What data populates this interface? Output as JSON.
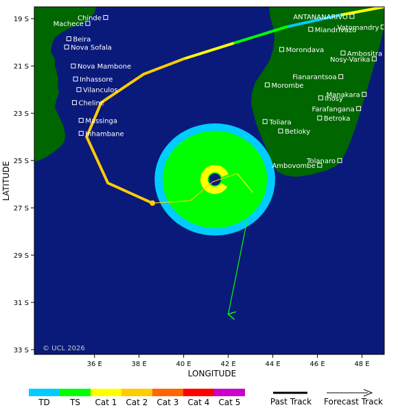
{
  "map": {
    "xlabel": "LONGITUDE",
    "ylabel": "LATITUDE",
    "copyright": "© UCL 2026",
    "lon_range": [
      33.3,
      49.0
    ],
    "lat_range": [
      -18.5,
      -33.2
    ],
    "x_ticks": [
      {
        "value": 36,
        "label": "36 E"
      },
      {
        "value": 38,
        "label": "38 E"
      },
      {
        "value": 40,
        "label": "40 E"
      },
      {
        "value": 42,
        "label": "42 E"
      },
      {
        "value": 44,
        "label": "44 E"
      },
      {
        "value": 46,
        "label": "46 E"
      },
      {
        "value": 48,
        "label": "48 E"
      }
    ],
    "y_ticks": [
      {
        "value": -19,
        "label": "19 S"
      },
      {
        "value": -21,
        "label": "21 S"
      },
      {
        "value": -23,
        "label": "23 S"
      },
      {
        "value": -25,
        "label": "25 S"
      },
      {
        "value": -27,
        "label": "27 S"
      },
      {
        "value": -29,
        "label": "29 S"
      },
      {
        "value": -31,
        "label": "31 S"
      },
      {
        "value": -33,
        "label": "33 S"
      }
    ],
    "colors": {
      "ocean": "#0a1a7a",
      "land": "#006600",
      "TD": "#00ccff",
      "TS": "#00ff00",
      "Cat 1": "#ffff00",
      "Cat 2": "#ffcc00",
      "Cat 3": "#ff6600",
      "Cat 4": "#ff0000",
      "Cat 5": "#cc00cc"
    },
    "places": [
      {
        "name": "Chinde",
        "lon": 36.5,
        "lat": -18.95,
        "anchor": "end"
      },
      {
        "name": "Machece",
        "lon": 35.7,
        "lat": -19.2,
        "anchor": "end"
      },
      {
        "name": "Beira",
        "lon": 34.85,
        "lat": -19.85,
        "anchor": "start"
      },
      {
        "name": "Nova Sofala",
        "lon": 34.75,
        "lat": -20.2,
        "anchor": "start"
      },
      {
        "name": "Nova Mambone",
        "lon": 35.05,
        "lat": -21.0,
        "anchor": "start"
      },
      {
        "name": "Inhassore",
        "lon": 35.15,
        "lat": -21.55,
        "anchor": "start"
      },
      {
        "name": "Vilanculos",
        "lon": 35.3,
        "lat": -22.0,
        "anchor": "start"
      },
      {
        "name": "Cheline",
        "lon": 35.1,
        "lat": -22.55,
        "anchor": "start"
      },
      {
        "name": "Massinga",
        "lon": 35.4,
        "lat": -23.3,
        "anchor": "start"
      },
      {
        "name": "Inhambane",
        "lon": 35.4,
        "lat": -23.85,
        "anchor": "start"
      },
      {
        "name": "ANTANANARIVO",
        "lon": 47.55,
        "lat": -18.9,
        "anchor": "end"
      },
      {
        "name": "Vatomandry",
        "lon": 48.95,
        "lat": -19.35,
        "anchor": "end"
      },
      {
        "name": "Miandrivazo",
        "lon": 45.7,
        "lat": -19.45,
        "anchor": "start"
      },
      {
        "name": "Morondava",
        "lon": 44.4,
        "lat": -20.3,
        "anchor": "start"
      },
      {
        "name": "Ambositra",
        "lon": 47.15,
        "lat": -20.45,
        "anchor": "start"
      },
      {
        "name": "Nosy-Varika",
        "lon": 48.55,
        "lat": -20.7,
        "anchor": "end"
      },
      {
        "name": "Fianarantsoa",
        "lon": 47.05,
        "lat": -21.45,
        "anchor": "end"
      },
      {
        "name": "Morombe",
        "lon": 43.75,
        "lat": -21.8,
        "anchor": "start"
      },
      {
        "name": "Manakara",
        "lon": 48.1,
        "lat": -22.2,
        "anchor": "end"
      },
      {
        "name": "Ihosy",
        "lon": 46.15,
        "lat": -22.35,
        "anchor": "start"
      },
      {
        "name": "Farafangana",
        "lon": 47.85,
        "lat": -22.8,
        "anchor": "end"
      },
      {
        "name": "Betroka",
        "lon": 46.1,
        "lat": -23.2,
        "anchor": "start"
      },
      {
        "name": "Toliara",
        "lon": 43.65,
        "lat": -23.35,
        "anchor": "start"
      },
      {
        "name": "Betioky",
        "lon": 44.35,
        "lat": -23.75,
        "anchor": "start"
      },
      {
        "name": "Tolanaro",
        "lon": 47.0,
        "lat": -25.0,
        "anchor": "end"
      },
      {
        "name": "Ambovombe",
        "lon": 46.1,
        "lat": -25.2,
        "anchor": "end"
      }
    ],
    "past_track": [
      {
        "lon": 49.0,
        "lat": -18.5,
        "category": "Cat 1"
      },
      {
        "lon": 47.0,
        "lat": -18.85,
        "category": "Cat 1"
      },
      {
        "lon": 44.6,
        "lat": -19.35,
        "category": "TD"
      },
      {
        "lon": 42.2,
        "lat": -20.05,
        "category": "TS"
      },
      {
        "lon": 40.0,
        "lat": -20.7,
        "category": "Cat 1"
      },
      {
        "lon": 38.2,
        "lat": -21.35,
        "category": "Cat 2"
      },
      {
        "lon": 36.3,
        "lat": -22.55,
        "category": "Cat 2"
      },
      {
        "lon": 35.65,
        "lat": -24.0,
        "category": "Cat 2"
      },
      {
        "lon": 36.6,
        "lat": -25.95,
        "category": "Cat 2"
      },
      {
        "lon": 38.6,
        "lat": -26.8,
        "category": "Cat 2"
      }
    ],
    "current_position": {
      "lon": 38.6,
      "lat": -26.8
    },
    "forecast_track": {
      "cone_points": [
        {
          "lon": 38.6,
          "lat": -26.8
        },
        {
          "lon": 40.3,
          "lat": -26.7
        },
        {
          "lon": 41.3,
          "lat": -25.9
        },
        {
          "lon": 42.4,
          "lat": -25.55
        }
      ],
      "spur": [
        {
          "lon": 42.4,
          "lat": -25.55
        },
        {
          "lon": 43.1,
          "lat": -26.35
        },
        {
          "lon": 42.0,
          "lat": -31.5
        }
      ]
    },
    "wind_field": {
      "center": {
        "lon": 41.4,
        "lat": -25.8
      },
      "td_radius_deg": 2.65,
      "ts_radius_deg": 2.3,
      "hurricane_arc_radius_deg": 0.65
    }
  },
  "legend": {
    "scale": [
      {
        "label": "TD",
        "color": "#00ccff"
      },
      {
        "label": "TS",
        "color": "#00ff00"
      },
      {
        "label": "Cat 1",
        "color": "#ffff00"
      },
      {
        "label": "Cat 2",
        "color": "#ffcc00"
      },
      {
        "label": "Cat 3",
        "color": "#ff6600"
      },
      {
        "label": "Cat 4",
        "color": "#ff0000"
      },
      {
        "label": "Cat 5",
        "color": "#cc00cc"
      }
    ],
    "past_track_label": "Past Track",
    "forecast_track_label": "Forecast Track"
  }
}
